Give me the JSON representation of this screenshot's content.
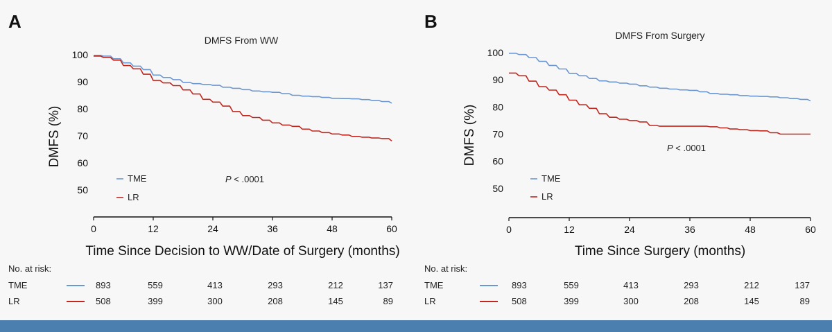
{
  "colors": {
    "tme": "#6b97d1",
    "lr": "#c0281f",
    "axis": "#111111",
    "bottom_bar": "#4a7fb0"
  },
  "chart_data": [
    {
      "type": "line",
      "panel": "A",
      "title": "DMFS From WW",
      "xlabel": "Time Since Decision to WW/Date of Surgery (months)",
      "ylabel": "DMFS (%)",
      "xlim": [
        0,
        60
      ],
      "ylim": [
        40,
        100
      ],
      "xticks": [
        "0",
        "12",
        "24",
        "36",
        "48",
        "60"
      ],
      "yticks": [
        "100",
        "90",
        "80",
        "70",
        "60",
        "50"
      ],
      "pvalue": {
        "p": "P",
        "rest": " < .0001"
      },
      "legend": [
        {
          "key": "tme",
          "label": "TME"
        },
        {
          "key": "lr",
          "label": "LR"
        }
      ],
      "series": [
        {
          "key": "tme",
          "name": "TME",
          "x": [
            0,
            2,
            4,
            6,
            8,
            10,
            12,
            14,
            16,
            18,
            20,
            22,
            24,
            26,
            28,
            30,
            32,
            34,
            36,
            38,
            40,
            42,
            44,
            46,
            48,
            50,
            52,
            54,
            56,
            58,
            60
          ],
          "y": [
            99.8,
            99.5,
            98.5,
            97,
            95.8,
            94.5,
            92.5,
            91.6,
            90.8,
            89.8,
            89.3,
            89,
            88.7,
            88,
            87.6,
            87.1,
            86.6,
            86.3,
            86.1,
            85.6,
            85,
            84.7,
            84.5,
            84.2,
            83.9,
            83.8,
            83.7,
            83.4,
            83.1,
            82.7,
            82.1
          ]
        },
        {
          "key": "lr",
          "name": "LR",
          "x": [
            0,
            2,
            4,
            6,
            8,
            10,
            12,
            14,
            16,
            18,
            20,
            22,
            24,
            26,
            28,
            30,
            32,
            34,
            36,
            38,
            40,
            42,
            44,
            46,
            48,
            50,
            52,
            54,
            56,
            58,
            60
          ],
          "y": [
            99.5,
            99,
            98,
            96,
            94.8,
            92.8,
            90.5,
            89.6,
            88.6,
            87,
            85.5,
            83.5,
            82.5,
            81,
            79,
            77.5,
            76.8,
            75.8,
            74.8,
            74,
            73.5,
            72.5,
            71.8,
            71.2,
            70.7,
            70.3,
            69.8,
            69.5,
            69.2,
            69,
            68.1
          ]
        }
      ],
      "risk_table": {
        "header": "No. at risk:",
        "rows": [
          {
            "key": "tme",
            "label": "TME",
            "values": [
              "893",
              "559",
              "413",
              "293",
              "212",
              "137"
            ]
          },
          {
            "key": "lr",
            "label": "LR",
            "values": [
              "508",
              "399",
              "300",
              "208",
              "145",
              "89"
            ]
          }
        ]
      }
    },
    {
      "type": "line",
      "panel": "B",
      "title": "DMFS From Surgery",
      "xlabel": "Time  Since Surgery (months)",
      "ylabel": "DMFS (%)",
      "xlim": [
        0,
        60
      ],
      "ylim": [
        40,
        100
      ],
      "xticks": [
        "0",
        "12",
        "24",
        "36",
        "48",
        "60"
      ],
      "yticks": [
        "100",
        "90",
        "80",
        "70",
        "60",
        "50"
      ],
      "pvalue": {
        "p": "P",
        "rest": " < .0001"
      },
      "legend": [
        {
          "key": "tme",
          "label": "TME"
        },
        {
          "key": "lr",
          "label": "LR"
        }
      ],
      "series": [
        {
          "key": "tme",
          "name": "TME",
          "x": [
            0,
            2,
            4,
            6,
            8,
            10,
            12,
            14,
            16,
            18,
            20,
            22,
            24,
            26,
            28,
            30,
            32,
            34,
            36,
            38,
            40,
            42,
            44,
            46,
            48,
            50,
            52,
            54,
            56,
            58,
            60
          ],
          "y": [
            99.8,
            99.3,
            98.2,
            96.8,
            95.3,
            94,
            92.4,
            91.5,
            90.5,
            89.6,
            89.2,
            88.8,
            88.4,
            87.8,
            87.3,
            86.9,
            86.6,
            86.3,
            86.1,
            85.6,
            85,
            84.7,
            84.5,
            84.2,
            84,
            83.9,
            83.7,
            83.4,
            83.1,
            82.8,
            82.2
          ]
        },
        {
          "key": "lr",
          "name": "LR",
          "x": [
            0,
            2,
            4,
            6,
            8,
            10,
            12,
            14,
            16,
            18,
            20,
            22,
            24,
            26,
            28,
            30,
            32,
            34,
            36,
            38,
            40,
            42,
            44,
            46,
            48,
            50,
            52,
            54,
            56,
            58,
            60
          ],
          "y": [
            92.5,
            91.5,
            89.5,
            87.5,
            86.2,
            84.5,
            82.5,
            80.8,
            79.5,
            77.5,
            76.2,
            75.5,
            75,
            74.5,
            73.2,
            72.9,
            72.9,
            72.9,
            72.9,
            72.9,
            72.7,
            72.3,
            71.9,
            71.6,
            71.3,
            71.2,
            70.5,
            70,
            70,
            70,
            70
          ]
        }
      ],
      "risk_table": {
        "header": "No. at risk:",
        "rows": [
          {
            "key": "tme",
            "label": "TME",
            "values": [
              "893",
              "559",
              "413",
              "293",
              "212",
              "137"
            ]
          },
          {
            "key": "lr",
            "label": "LR",
            "values": [
              "508",
              "399",
              "300",
              "208",
              "145",
              "89"
            ]
          }
        ]
      }
    }
  ]
}
